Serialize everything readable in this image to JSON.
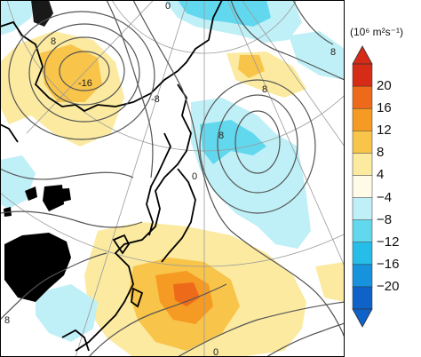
{
  "colorbar": {
    "units": "(10⁶ m²s⁻¹)",
    "ticks": [
      "20",
      "16",
      "12",
      "8",
      "4",
      "−4",
      "−8",
      "−12",
      "−16",
      "−20"
    ],
    "colors": [
      "#d52b17",
      "#ee6a1b",
      "#f59a22",
      "#f8c44a",
      "#fbeaa0",
      "#fffbe6",
      "#bff0f7",
      "#62d8ef",
      "#26bde8",
      "#1792dd",
      "#0e62c8"
    ]
  },
  "contour_labels": [
    "8",
    "-16",
    "-8",
    "0",
    "8",
    "8",
    "8",
    "8",
    "0",
    "0"
  ],
  "shading_colors": {
    "pos_light": "#fbeaa0",
    "pos_mid": "#f8c44a",
    "pos_strong": "#f59a22",
    "pos_max": "#ee6a1b",
    "neg_light": "#bff0f7",
    "neg_mid": "#62d8ef",
    "neg_strong": "#26bde8",
    "land_mask": "#000000",
    "contour": "#555555",
    "coast": "#000000"
  }
}
